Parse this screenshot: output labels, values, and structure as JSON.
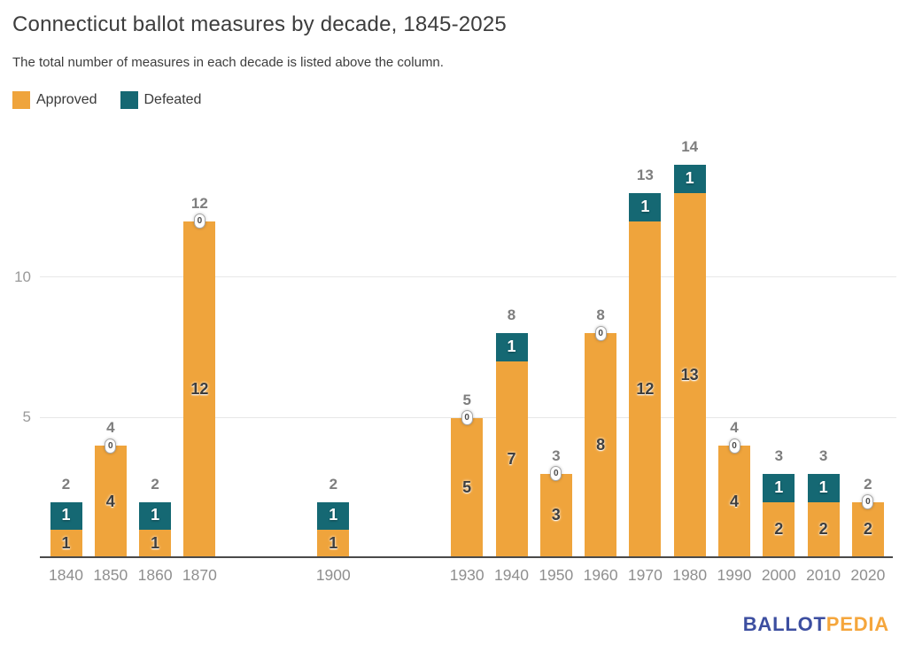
{
  "header": {
    "title": "Connecticut ballot measures by decade, 1845-2025",
    "subtitle": "The total number of measures in each decade is listed above the column."
  },
  "legend": {
    "items": [
      {
        "name": "approved",
        "label": "Approved",
        "color": "#EFA43C"
      },
      {
        "name": "defeated",
        "label": "Defeated",
        "color": "#156873"
      }
    ]
  },
  "chart_data": {
    "type": "bar",
    "stacked": true,
    "title": "Connecticut ballot measures by decade, 1845-2025",
    "subtitle": "The total number of measures in each decade is listed above the column.",
    "series_names": [
      "Approved",
      "Defeated"
    ],
    "categories": [
      "1840",
      "1850",
      "1860",
      "1870",
      "1900",
      "1930",
      "1940",
      "1950",
      "1960",
      "1970",
      "1980",
      "1990",
      "2000",
      "2010",
      "2020"
    ],
    "bars": [
      {
        "year": 1840,
        "approved": 1,
        "defeated": 1,
        "total": 2
      },
      {
        "year": 1850,
        "approved": 4,
        "defeated": 0,
        "total": 4
      },
      {
        "year": 1860,
        "approved": 1,
        "defeated": 1,
        "total": 2
      },
      {
        "year": 1870,
        "approved": 12,
        "defeated": 0,
        "total": 12
      },
      {
        "year": 1900,
        "approved": 1,
        "defeated": 1,
        "total": 2
      },
      {
        "year": 1930,
        "approved": 5,
        "defeated": 0,
        "total": 5
      },
      {
        "year": 1940,
        "approved": 7,
        "defeated": 1,
        "total": 8
      },
      {
        "year": 1950,
        "approved": 3,
        "defeated": 0,
        "total": 3
      },
      {
        "year": 1960,
        "approved": 8,
        "defeated": 0,
        "total": 8
      },
      {
        "year": 1970,
        "approved": 12,
        "defeated": 1,
        "total": 13
      },
      {
        "year": 1980,
        "approved": 13,
        "defeated": 1,
        "total": 14
      },
      {
        "year": 1990,
        "approved": 4,
        "defeated": 0,
        "total": 4
      },
      {
        "year": 2000,
        "approved": 2,
        "defeated": 1,
        "total": 3
      },
      {
        "year": 2010,
        "approved": 2,
        "defeated": 1,
        "total": 3
      },
      {
        "year": 2020,
        "approved": 2,
        "defeated": 0,
        "total": 2
      }
    ],
    "y_axis": {
      "ticks": [
        5,
        10
      ],
      "range": [
        0,
        15
      ],
      "grid": true
    },
    "x_axis": {
      "unit": "decade",
      "range": [
        1840,
        2020
      ]
    },
    "legend_position": "top-left",
    "zero_defeated_badge": "0",
    "colors": {
      "approved": "#EFA43C",
      "defeated": "#156873",
      "grid": "#e7e7e7",
      "axis_line": "#4a4a4a",
      "tick_label": "#8f8f8f",
      "total_label": "#7e7e7e"
    }
  },
  "branding": {
    "logo_part1": "BALLOT",
    "logo_part2": "PEDIA",
    "logo_color1": "#3C4EA0",
    "logo_color2": "#F5A63C"
  }
}
